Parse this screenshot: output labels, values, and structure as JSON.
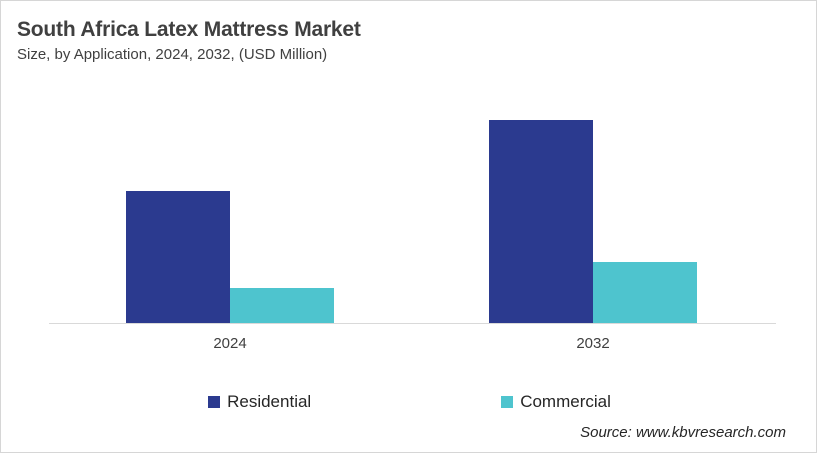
{
  "header": {
    "title": "South Africa Latex Mattress Market",
    "subtitle": "Size, by Application, 2024, 2032, (USD Million)"
  },
  "footer": {
    "source": "Source: www.kbvresearch.com"
  },
  "colors": {
    "residential": "#2B3A8F",
    "commercial": "#4EC4CE",
    "axis_line": "#D9D9D9",
    "title_text": "#404040",
    "background": "#FFFFFF"
  },
  "chart_data": {
    "type": "bar",
    "title": "South Africa Latex Mattress Market",
    "subtitle": "Size, by Application, 2024, 2032, (USD Million)",
    "unit": "USD Million",
    "categories": [
      "2024",
      "2032"
    ],
    "series": [
      {
        "name": "Residential",
        "color": "#2B3A8F",
        "values": [
          65,
          100
        ]
      },
      {
        "name": "Commercial",
        "color": "#4EC4CE",
        "values": [
          17,
          30
        ]
      }
    ],
    "ylim": [
      0,
      100
    ],
    "value_axis": "hidden",
    "grid": false,
    "legend_position": "bottom"
  }
}
